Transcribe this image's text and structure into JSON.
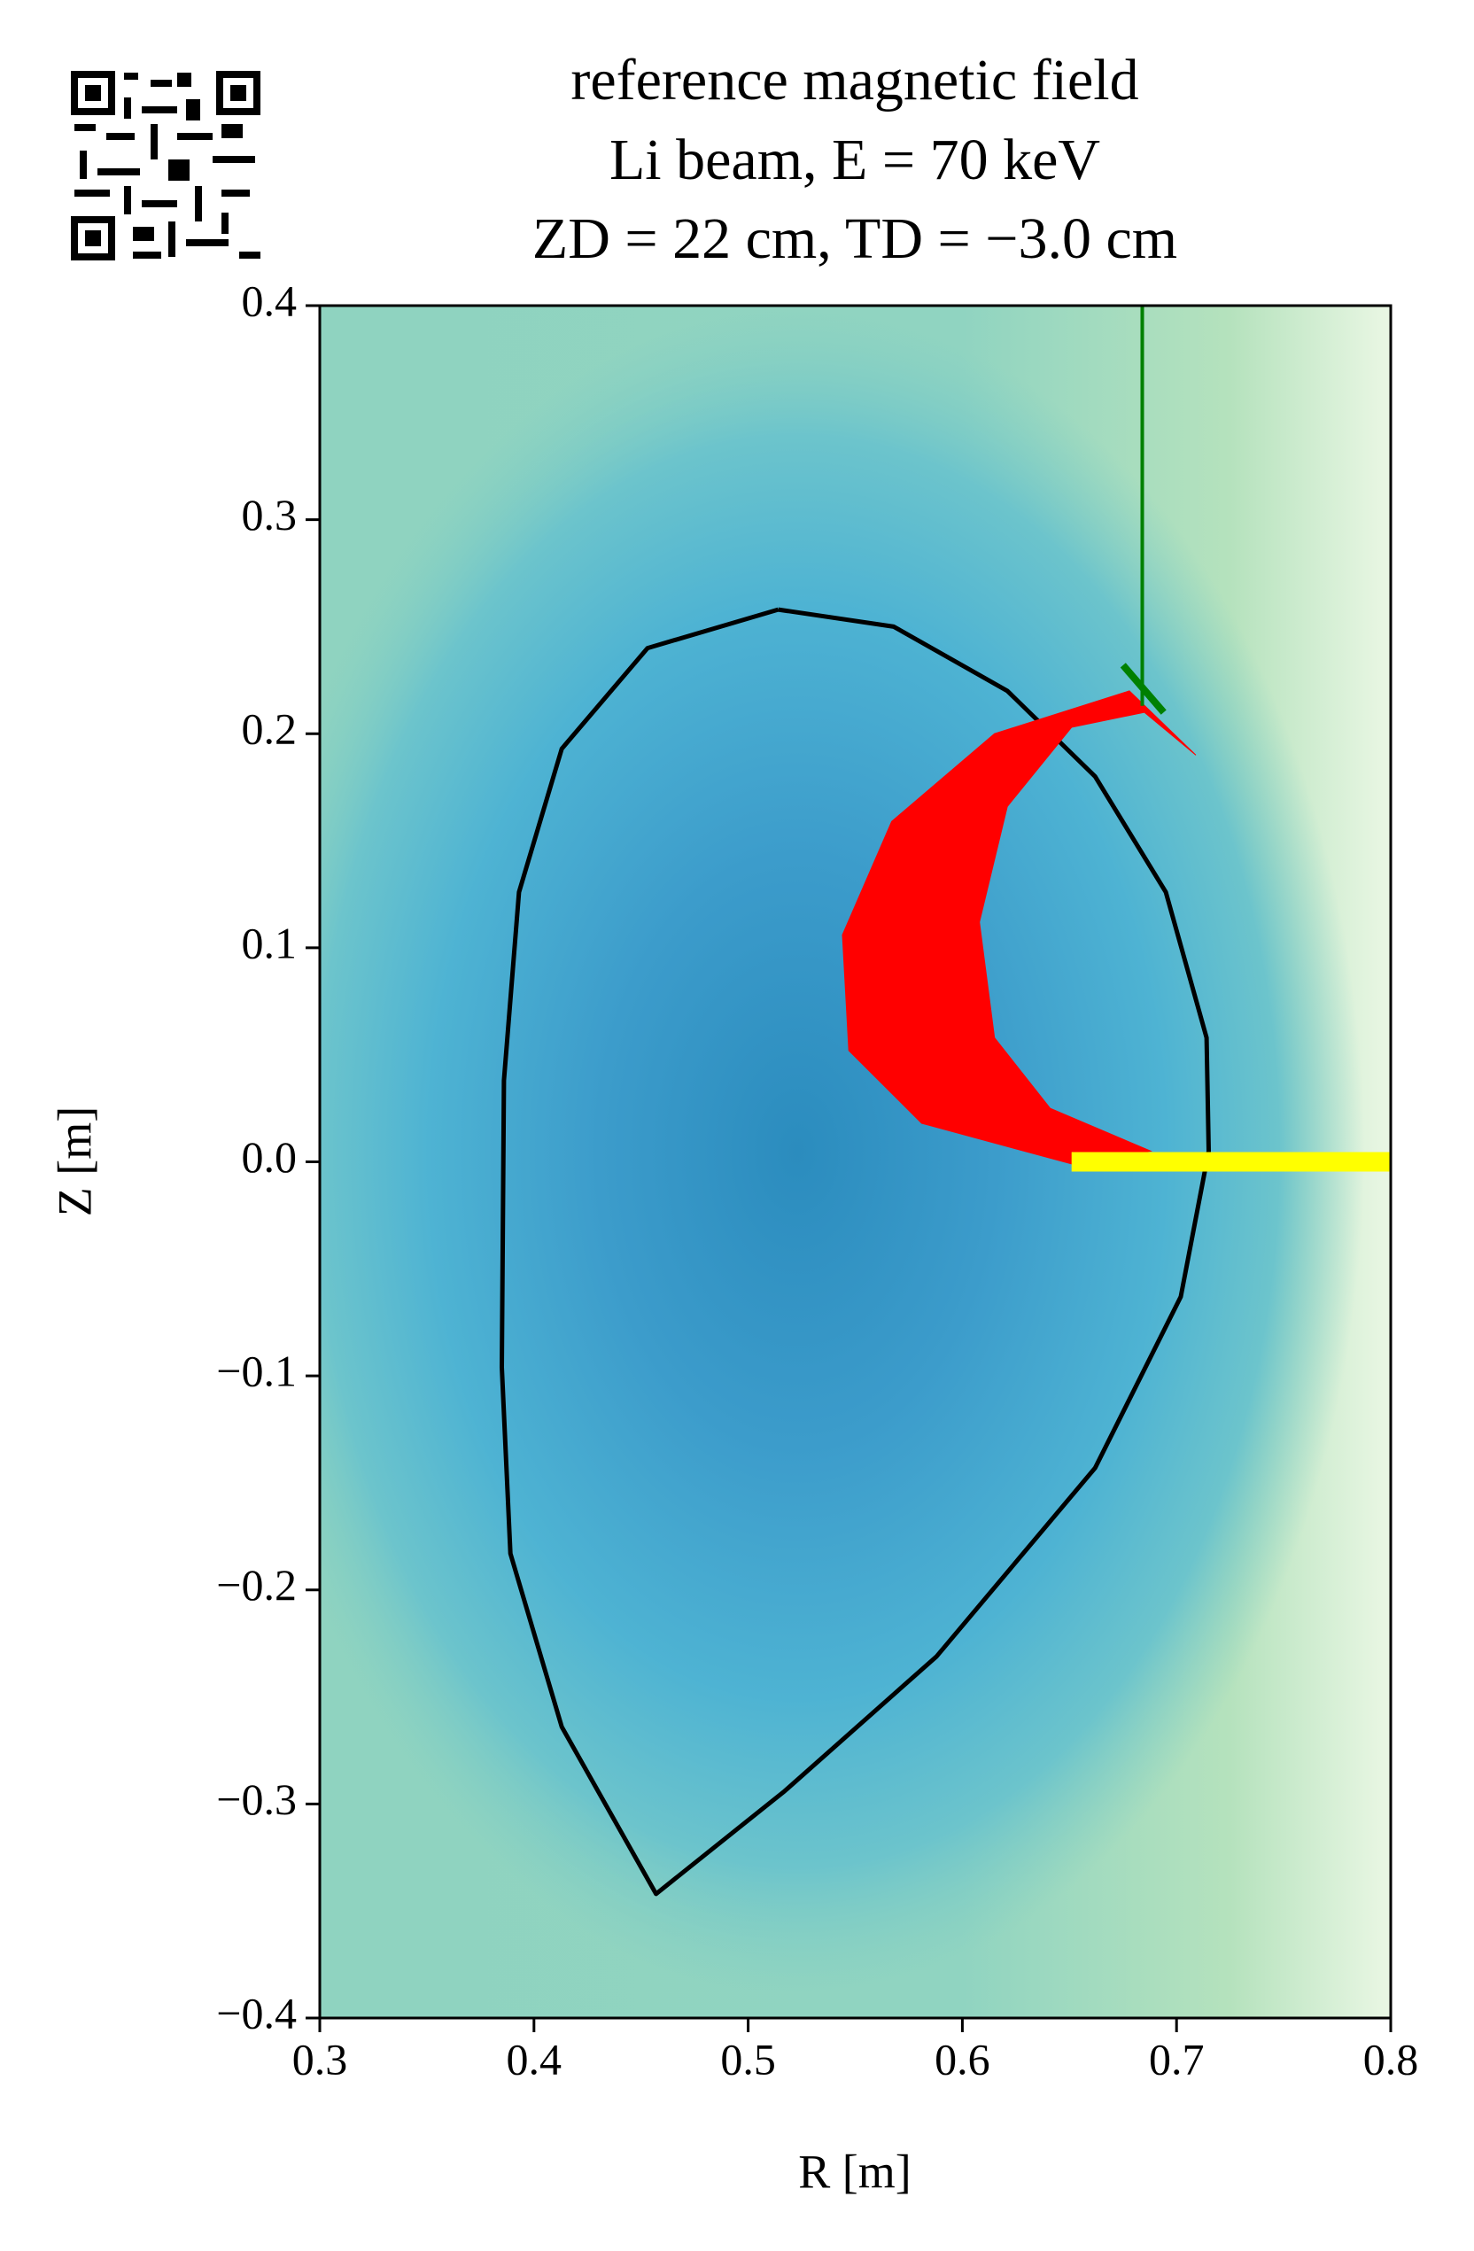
{
  "chart_data": {
    "type": "contour",
    "title": [
      "reference magnetic field",
      "Li beam, E = 70 keV",
      "ZD = 22 cm, TD = −3.0 cm"
    ],
    "xlabel": "R [m]",
    "ylabel": "Z [m]",
    "xlim": [
      0.3,
      0.8
    ],
    "ylim": [
      -0.4,
      0.4
    ],
    "xticks": [
      0.3,
      0.4,
      0.5,
      0.6,
      0.7,
      0.8
    ],
    "yticks": [
      {
        "value": -0.4,
        "label": "−0.4"
      },
      {
        "value": -0.3,
        "label": "−0.3"
      },
      {
        "value": -0.2,
        "label": "−0.2"
      },
      {
        "value": -0.1,
        "label": "−0.1"
      },
      {
        "value": 0,
        "label": "0.0"
      },
      0.1,
      0.2,
      0.3,
      0.4
    ],
    "series": [
      {
        "kind": "line",
        "color": "#000000",
        "x": [
          0.514,
          0.453,
          0.413,
          0.393,
          0.386,
          0.385,
          0.389,
          0.413,
          0.457,
          0.517,
          0.588,
          0.662,
          0.702,
          0.715,
          0.714,
          0.695,
          0.662,
          0.621,
          0.568,
          0.514
        ],
        "y": [
          0.258,
          0.24,
          0.193,
          0.126,
          0.038,
          -0.096,
          -0.183,
          -0.264,
          -0.342,
          -0.294,
          -0.231,
          -0.143,
          -0.063,
          0.005,
          0.058,
          0.126,
          0.18,
          0.22,
          0.25,
          0.258
        ]
      },
      {
        "kind": "fill",
        "color": "#ff0000",
        "x": [
          0.678,
          0.615,
          0.567,
          0.544,
          0.547,
          0.581,
          0.651,
          0.688,
          0.641,
          0.615,
          0.608,
          0.621,
          0.651,
          0.685,
          0.709
        ],
        "y": [
          0.22,
          0.2,
          0.159,
          0.106,
          0.052,
          0.018,
          -0.001,
          0.005,
          0.025,
          0.058,
          0.112,
          0.166,
          0.203,
          0.21,
          0.19
        ]
      },
      {
        "kind": "line",
        "color": "#ffff00",
        "x": [
          0.651,
          0.8
        ],
        "y": [
          0.0,
          0.0
        ]
      },
      {
        "kind": "line",
        "color": "#008000",
        "x": [
          0.684,
          0.684
        ],
        "y": [
          0.4,
          0.213
        ]
      },
      {
        "kind": "line",
        "color": "#008000",
        "x": [
          0.675,
          0.694
        ],
        "y": [
          0.232,
          0.21
        ]
      }
    ]
  }
}
